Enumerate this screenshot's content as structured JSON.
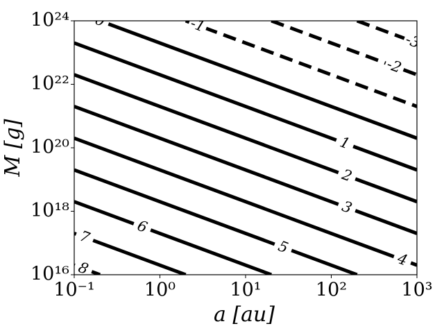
{
  "chart_data": {
    "type": "contour",
    "xlabel": "a [au]",
    "ylabel": "M [g]",
    "xscale": "log",
    "yscale": "log",
    "color": "#000000",
    "xlim": [
      0.1,
      1000
    ],
    "ylim": [
      1e+16,
      1e+24
    ],
    "xticks": [
      {
        "value": 0.1,
        "label": "10⁻¹"
      },
      {
        "value": 1,
        "label": "10⁰"
      },
      {
        "value": 10,
        "label": "10¹"
      },
      {
        "value": 100,
        "label": "10²"
      },
      {
        "value": 1000,
        "label": "10³"
      }
    ],
    "yticks": [
      {
        "value": 1e+16,
        "label": "10¹⁶"
      },
      {
        "value": 1e+18,
        "label": "10¹⁸"
      },
      {
        "value": 1e+20,
        "label": "10²⁰"
      },
      {
        "value": 1e+22,
        "label": "10²²"
      },
      {
        "value": 1e+24,
        "label": "10²⁴"
      }
    ],
    "contours": [
      {
        "level": -3,
        "x": [
          200,
          1000
        ],
        "y": [
          1e+24,
          2e+23
        ]
      },
      {
        "level": -2,
        "x": [
          20,
          1000
        ],
        "y": [
          1e+24,
          2e+22
        ]
      },
      {
        "level": -1,
        "x": [
          2,
          1000
        ],
        "y": [
          1e+24,
          2e+21
        ]
      },
      {
        "level": 0,
        "x": [
          0.2,
          1000
        ],
        "y": [
          1e+24,
          2e+20
        ]
      },
      {
        "level": 1,
        "x": [
          0.1,
          1000
        ],
        "y": [
          2e+23,
          2e+19
        ]
      },
      {
        "level": 2,
        "x": [
          0.1,
          1000
        ],
        "y": [
          2e+22,
          2e+18
        ]
      },
      {
        "level": 3,
        "x": [
          0.1,
          1000
        ],
        "y": [
          2e+21,
          2e+17
        ]
      },
      {
        "level": 4,
        "x": [
          0.1,
          1000
        ],
        "y": [
          2e+20,
          2e+16
        ]
      },
      {
        "level": 5,
        "x": [
          0.1,
          200
        ],
        "y": [
          2e+19,
          1e+16
        ]
      },
      {
        "level": 6,
        "x": [
          0.1,
          20
        ],
        "y": [
          2e+18,
          1e+16
        ]
      },
      {
        "level": 7,
        "x": [
          0.1,
          2
        ],
        "y": [
          2e+17,
          1e+16
        ]
      },
      {
        "level": 8,
        "x": [
          0.1,
          0.2
        ],
        "y": [
          2e+16,
          1e+16
        ]
      }
    ]
  }
}
